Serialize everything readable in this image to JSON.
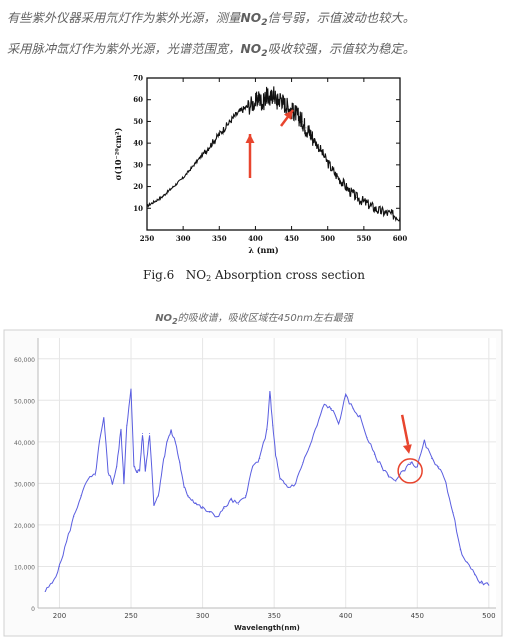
{
  "text": {
    "line1_a": "有些紫外仪器采用氘灯作为紫外光源，测量",
    "line1_b": "NO",
    "line1_sub": "2",
    "line1_c": "信号弱，示值波动也较大。",
    "line2_a": "采用脉冲氙灯作为紫外光源，光谱范围宽，",
    "line2_b": "NO",
    "line2_sub": "2",
    "line2_c": "吸收较强，示值较为稳定。",
    "fig_caption_prefix": "Fig.6",
    "fig_caption_a": "NO",
    "fig_caption_sub": "2",
    "fig_caption_b": " Absorption cross section",
    "caption2_a": "NO",
    "caption2_sub": "2",
    "caption2_b": "的吸收谱，吸收区域在450nm左右最强"
  },
  "colors": {
    "trace1": "#111111",
    "trace2": "#5a5ee0",
    "arrow": "#e8452e",
    "circle": "#e8452e",
    "grid2": "#e6e6e6",
    "plot_bg2": "#ffffff",
    "frame2": "#d0d0d0"
  },
  "chart_data": [
    {
      "type": "line",
      "title": "",
      "xlabel": "λ (nm)",
      "ylabel": "σ(10⁻²⁰cm²)",
      "xlim": [
        250,
        600
      ],
      "ylim": [
        0,
        70
      ],
      "xticks": [
        250,
        300,
        350,
        400,
        450,
        500,
        550,
        600
      ],
      "yticks": [
        10,
        20,
        30,
        40,
        50,
        60,
        70
      ],
      "series": [
        {
          "x": [
            250,
            260,
            270,
            280,
            290,
            300,
            310,
            320,
            330,
            340,
            350,
            360,
            370,
            380,
            390,
            400,
            405,
            410,
            415,
            420,
            425,
            430,
            435,
            440,
            445,
            450,
            455,
            460,
            465,
            470,
            475,
            480,
            490,
            500,
            510,
            520,
            530,
            540,
            550,
            560,
            570,
            580,
            590,
            600
          ],
          "y": [
            11,
            13,
            15,
            18,
            21,
            24,
            28,
            32,
            36,
            40,
            44,
            48,
            52,
            55,
            57,
            59,
            61,
            58,
            62,
            60,
            63,
            59,
            61,
            58,
            57,
            55,
            54,
            52,
            50,
            47,
            45,
            42,
            37,
            31,
            26,
            22,
            18,
            15,
            13,
            11,
            9,
            8,
            7,
            6
          ]
        }
      ],
      "annotations": [
        "arrow near 405 nm",
        "arrow near 450 nm"
      ]
    },
    {
      "type": "line",
      "title": "",
      "xlabel": "Wavelength(nm)",
      "ylabel": "",
      "xlim": [
        185,
        505
      ],
      "ylim": [
        0,
        65000
      ],
      "xticks": [
        200,
        250,
        300,
        350,
        400,
        450,
        500
      ],
      "yticks": [
        0,
        10000,
        20000,
        30000,
        40000,
        50000,
        60000
      ],
      "ytick_labels": [
        "0",
        "10,000",
        "20,000",
        "30,000",
        "40,000",
        "50,000",
        "60,000"
      ],
      "grid": true,
      "series": [
        {
          "x": [
            190,
            195,
            200,
            205,
            210,
            215,
            220,
            225,
            228,
            231,
            234,
            237,
            240,
            243,
            245,
            247,
            250,
            252,
            254,
            256,
            258,
            260,
            263,
            266,
            269,
            272,
            275,
            278,
            281,
            284,
            287,
            290,
            293,
            296,
            300,
            305,
            310,
            315,
            320,
            325,
            330,
            335,
            340,
            345,
            347,
            349,
            351,
            354,
            357,
            360,
            365,
            370,
            375,
            380,
            385,
            390,
            395,
            400,
            405,
            410,
            415,
            420,
            425,
            430,
            435,
            440,
            445,
            450,
            455,
            460,
            465,
            470,
            475,
            480,
            485,
            490,
            495,
            500
          ],
          "y": [
            4000,
            6000,
            10000,
            16000,
            22000,
            27000,
            31000,
            32000,
            40000,
            45500,
            33000,
            30000,
            34000,
            43000,
            30000,
            44000,
            52500,
            34000,
            33000,
            33000,
            42000,
            33000,
            42000,
            25000,
            27000,
            34000,
            40000,
            42500,
            40000,
            35000,
            29000,
            27000,
            26000,
            25000,
            24000,
            23000,
            22000,
            24000,
            26000,
            25000,
            27000,
            34000,
            36000,
            43000,
            52000,
            44000,
            37000,
            31000,
            30000,
            29000,
            30000,
            35000,
            39000,
            44000,
            49000,
            48000,
            44500,
            51000,
            48000,
            46000,
            41000,
            37000,
            34000,
            32000,
            30500,
            33000,
            35000,
            34000,
            40000,
            36000,
            34000,
            30000,
            23000,
            14000,
            11000,
            8000,
            6000,
            5500
          ]
        }
      ],
      "annotations": [
        "arrow near 445 nm",
        "circle at 445 nm"
      ]
    }
  ]
}
